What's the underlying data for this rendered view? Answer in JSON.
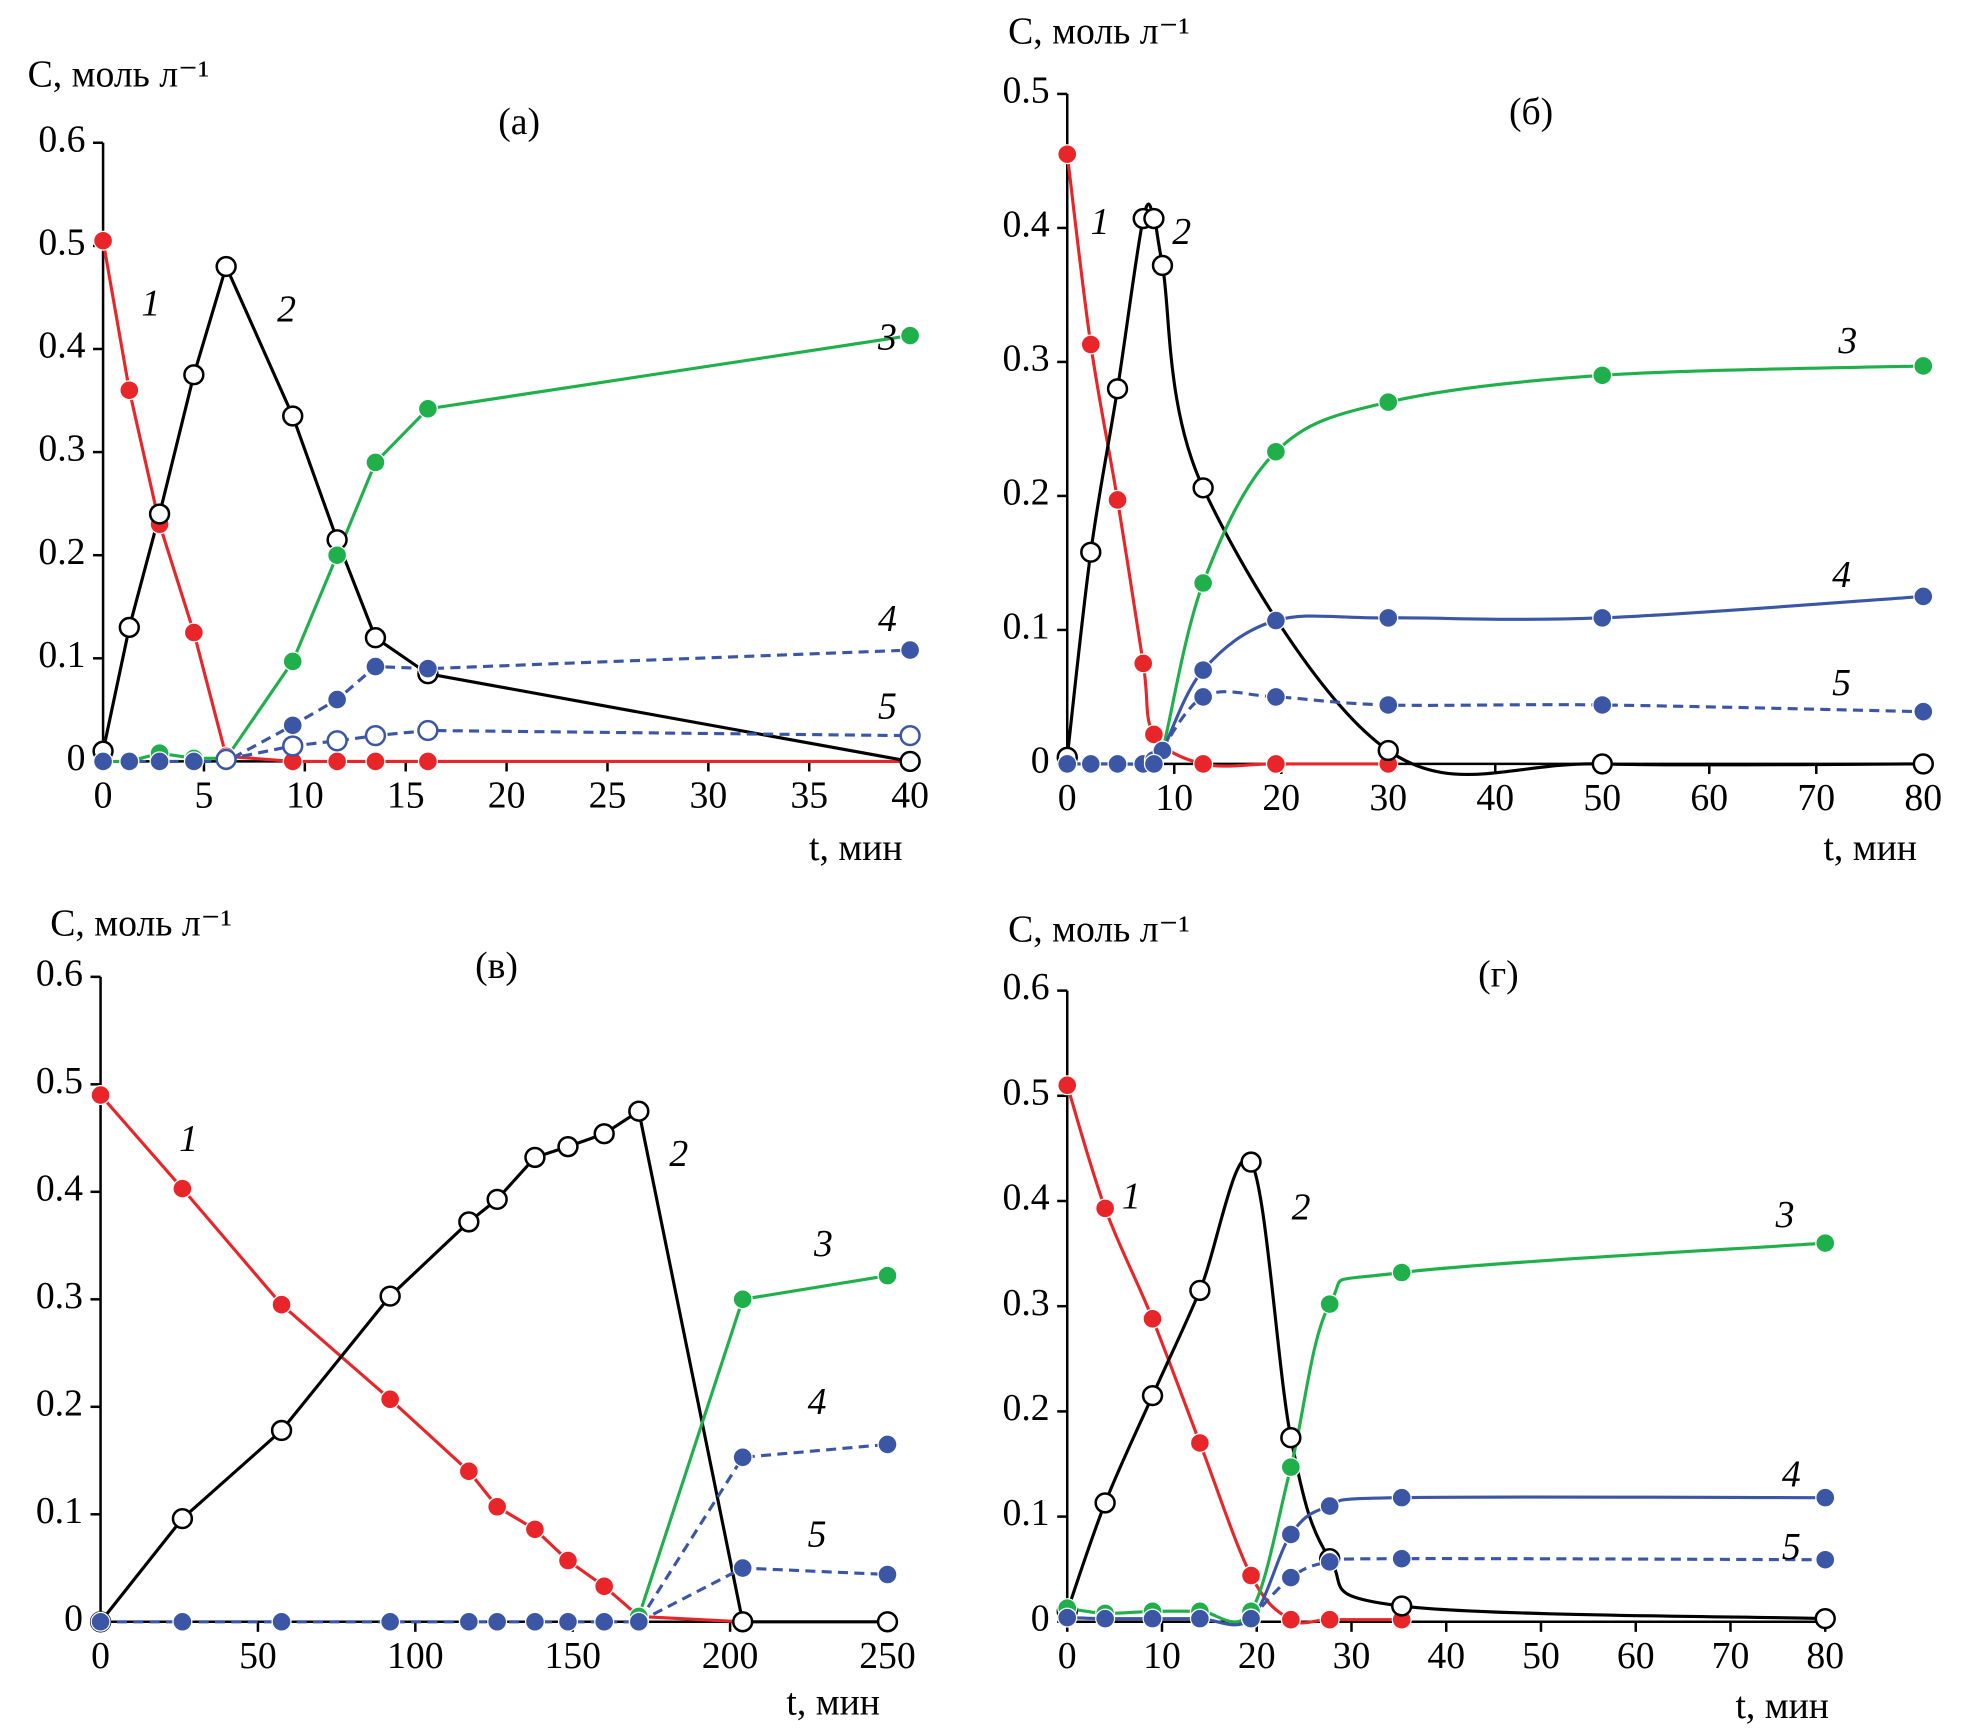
{
  "chart_data": [
    {
      "type": "line",
      "title": "(а)",
      "y_label": "C, моль л⁻¹",
      "x_label": "t, мин",
      "xlim": [
        0,
        40
      ],
      "xticks": [
        0,
        5,
        10,
        15,
        20,
        25,
        30,
        35,
        40
      ],
      "ylim": [
        0,
        0.6
      ],
      "yticks": [
        0,
        0.1,
        0.2,
        0.3,
        0.4,
        0.5,
        0.6
      ],
      "smooth": false,
      "series": [
        {
          "name": "1",
          "color": "#e8262a",
          "x": [
            0,
            1.3,
            2.8,
            4.5,
            6.1,
            9.4,
            11.6,
            13.5,
            16.1,
            40
          ],
          "values": [
            0.505,
            0.36,
            0.23,
            0.125,
            0.005,
            0,
            0,
            0,
            0,
            0
          ]
        },
        {
          "name": "2",
          "color": "#000000",
          "open": true,
          "x": [
            0,
            1.3,
            2.8,
            4.5,
            6.1,
            9.4,
            11.6,
            13.5,
            16.1,
            40
          ],
          "values": [
            0.01,
            0.13,
            0.24,
            0.375,
            0.48,
            0.335,
            0.215,
            0.12,
            0.085,
            0
          ]
        },
        {
          "name": "3",
          "color": "#1fb04b",
          "x": [
            0,
            1.3,
            2.8,
            4.5,
            6.1,
            9.4,
            11.6,
            13.5,
            16.1,
            40
          ],
          "values": [
            0,
            0,
            0.008,
            0.003,
            0.003,
            0.097,
            0.2,
            0.29,
            0.342,
            0.413
          ]
        },
        {
          "name": "4",
          "color": "#3a56a5",
          "dashed": true,
          "x": [
            0,
            1.3,
            2.8,
            4.5,
            6.1,
            9.4,
            11.6,
            13.5,
            16.1,
            40
          ],
          "values": [
            0,
            0,
            0,
            0,
            0,
            0.035,
            0.06,
            0.092,
            0.09,
            0.108
          ]
        },
        {
          "name": "5",
          "color": "#3a56a5",
          "dashed": true,
          "open": true,
          "x": [
            6.1,
            9.4,
            11.6,
            13.5,
            16.1,
            40
          ],
          "values": [
            0.002,
            0.015,
            0.02,
            0.025,
            0.03,
            0.025
          ]
        }
      ]
    },
    {
      "type": "line",
      "title": "(б)",
      "y_label": "C, моль л⁻¹",
      "x_label": "t, мин",
      "xlim": [
        0,
        80
      ],
      "xticks": [
        0,
        10,
        20,
        30,
        40,
        50,
        60,
        70,
        80
      ],
      "ylim": [
        0,
        0.5
      ],
      "yticks": [
        0,
        0.1,
        0.2,
        0.3,
        0.4,
        0.5
      ],
      "smooth": true,
      "series": [
        {
          "name": "1",
          "color": "#e8262a",
          "x": [
            0,
            2.2,
            4.7,
            7.1,
            8.1,
            12.7,
            19.5,
            30
          ],
          "values": [
            0.455,
            0.313,
            0.197,
            0.075,
            0.022,
            0,
            0,
            0
          ]
        },
        {
          "name": "2",
          "color": "#000000",
          "open": true,
          "x": [
            0,
            2.2,
            4.7,
            7.1,
            8.1,
            8.9,
            12.7,
            30,
            50,
            80
          ],
          "values": [
            0.005,
            0.158,
            0.28,
            0.407,
            0.407,
            0.372,
            0.206,
            0.01,
            0,
            0
          ]
        },
        {
          "name": "3",
          "color": "#1fb04b",
          "x": [
            0,
            2.2,
            4.7,
            7.1,
            8.1,
            8.9,
            12.7,
            19.5,
            30,
            50,
            80
          ],
          "values": [
            0,
            0,
            0,
            0,
            0,
            0.01,
            0.135,
            0.233,
            0.27,
            0.29,
            0.297
          ]
        },
        {
          "name": "4",
          "color": "#3a56a5",
          "x": [
            0,
            2.2,
            4.7,
            7.1,
            8.1,
            8.9,
            12.7,
            19.5,
            30,
            50,
            80
          ],
          "values": [
            0,
            0,
            0,
            0,
            0.003,
            0.01,
            0.07,
            0.107,
            0.109,
            0.109,
            0.125
          ]
        },
        {
          "name": "5",
          "color": "#3a56a5",
          "dashed": true,
          "x": [
            8.1,
            12.7,
            19.5,
            30,
            50,
            80
          ],
          "values": [
            0,
            0.05,
            0.05,
            0.044,
            0.044,
            0.039
          ]
        }
      ]
    },
    {
      "type": "line",
      "title": "(в)",
      "y_label": "C, моль л⁻¹",
      "x_label": "t, мин",
      "xlim": [
        0,
        250
      ],
      "xticks": [
        0,
        50,
        100,
        150,
        200,
        250
      ],
      "ylim": [
        0,
        0.6
      ],
      "yticks": [
        0,
        0.1,
        0.2,
        0.3,
        0.4,
        0.5,
        0.6
      ],
      "smooth": false,
      "series": [
        {
          "name": "1",
          "color": "#e8262a",
          "x": [
            0,
            26,
            57.5,
            92,
            117,
            126,
            138,
            148.5,
            160,
            171,
            204
          ],
          "values": [
            0.49,
            0.403,
            0.295,
            0.207,
            0.14,
            0.107,
            0.086,
            0.057,
            0.033,
            0.005,
            0
          ]
        },
        {
          "name": "2",
          "color": "#000000",
          "open": true,
          "x": [
            0,
            26,
            57.5,
            92,
            117,
            126,
            138,
            148.5,
            160,
            171,
            204,
            250
          ],
          "values": [
            0,
            0.096,
            0.178,
            0.303,
            0.372,
            0.393,
            0.432,
            0.442,
            0.454,
            0.475,
            0,
            0
          ]
        },
        {
          "name": "3",
          "color": "#1fb04b",
          "x": [
            171,
            204,
            250
          ],
          "values": [
            0.005,
            0.3,
            0.322
          ]
        },
        {
          "name": "4",
          "color": "#3a56a5",
          "dashed": true,
          "x": [
            0,
            26,
            57.5,
            92,
            117,
            126,
            138,
            148.5,
            160,
            171,
            204,
            250
          ],
          "values": [
            0,
            0,
            0,
            0,
            0,
            0,
            0,
            0,
            0,
            0,
            0.153,
            0.165
          ]
        },
        {
          "name": "5",
          "color": "#3a56a5",
          "dashed": true,
          "x": [
            171,
            204,
            250
          ],
          "values": [
            0,
            0.05,
            0.044
          ]
        }
      ]
    },
    {
      "type": "line",
      "title": "(г)",
      "y_label": "C, моль л⁻¹",
      "x_label": "t, мин",
      "xlim": [
        0,
        80
      ],
      "xticks": [
        0,
        10,
        20,
        30,
        40,
        50,
        60,
        70,
        80
      ],
      "ylim": [
        0,
        0.6
      ],
      "yticks": [
        0,
        0.1,
        0.2,
        0.3,
        0.4,
        0.5,
        0.6
      ],
      "smooth": true,
      "series": [
        {
          "name": "1",
          "color": "#e8262a",
          "x": [
            0,
            4,
            9,
            14,
            19.4,
            23.6,
            27.7,
            35.3
          ],
          "values": [
            0.51,
            0.393,
            0.288,
            0.17,
            0.044,
            0.002,
            0.002,
            0.002
          ]
        },
        {
          "name": "2",
          "color": "#000000",
          "open": true,
          "x": [
            0,
            4,
            9,
            14,
            19.4,
            23.6,
            27.7,
            35.3,
            80
          ],
          "values": [
            0.01,
            0.113,
            0.215,
            0.315,
            0.437,
            0.175,
            0.06,
            0.015,
            0.003
          ]
        },
        {
          "name": "3",
          "color": "#1fb04b",
          "x": [
            0,
            4,
            9,
            14,
            19.4,
            23.6,
            27.7,
            35.3,
            80
          ],
          "values": [
            0.013,
            0.008,
            0.01,
            0.01,
            0.01,
            0.147,
            0.302,
            0.332,
            0.36
          ]
        },
        {
          "name": "4",
          "color": "#3a56a5",
          "x": [
            0,
            4,
            9,
            14,
            19.4,
            23.6,
            27.7,
            35.3,
            80
          ],
          "values": [
            0.004,
            0.003,
            0.003,
            0.003,
            0.003,
            0.083,
            0.11,
            0.118,
            0.118
          ]
        },
        {
          "name": "5",
          "color": "#3a56a5",
          "dashed": true,
          "x": [
            19.4,
            23.6,
            27.7,
            35.3,
            80
          ],
          "values": [
            0.003,
            0.042,
            0.057,
            0.06,
            0.059
          ]
        }
      ]
    }
  ]
}
